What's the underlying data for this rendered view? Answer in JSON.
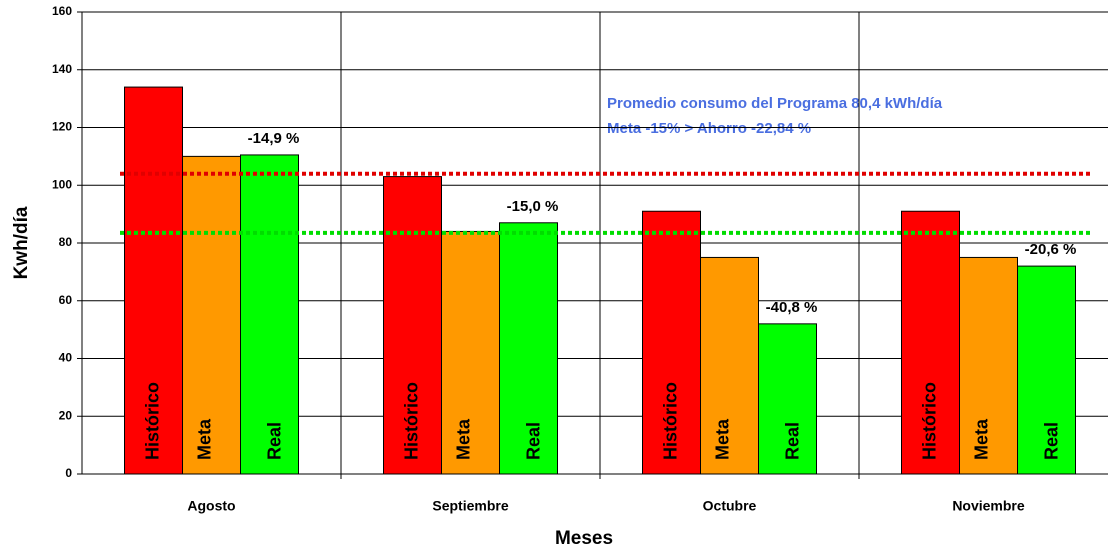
{
  "chart_data": {
    "type": "bar",
    "categories": [
      "Agosto",
      "Septiembre",
      "Octubre",
      "Noviembre"
    ],
    "series": [
      {
        "name": "Histórico",
        "color": "#ff0000",
        "values": [
          134,
          103,
          91,
          91
        ]
      },
      {
        "name": "Meta",
        "color": "#ff9900",
        "values": [
          110,
          84,
          75,
          75
        ]
      },
      {
        "name": "Real",
        "color": "#00ff00",
        "values": [
          110.5,
          87,
          52,
          72
        ]
      }
    ],
    "real_change_labels": [
      "-14,9 %",
      "-15,0 %",
      "-40,8 %",
      "-20,6 %"
    ],
    "reference_lines": [
      {
        "value": 104,
        "color": "#e00000"
      },
      {
        "value": 83.5,
        "color": "#00dd00"
      }
    ],
    "annotations": [
      "Promedio consumo del Programa 80,4 kWh/día",
      "Meta -15% > Ahorro -22,84 %"
    ],
    "x_label": "Meses",
    "y_label": "Kwh/día",
    "ylim": [
      0,
      160
    ],
    "yticks": [
      0,
      20,
      40,
      60,
      80,
      100,
      120,
      140,
      160
    ],
    "grid": true
  }
}
